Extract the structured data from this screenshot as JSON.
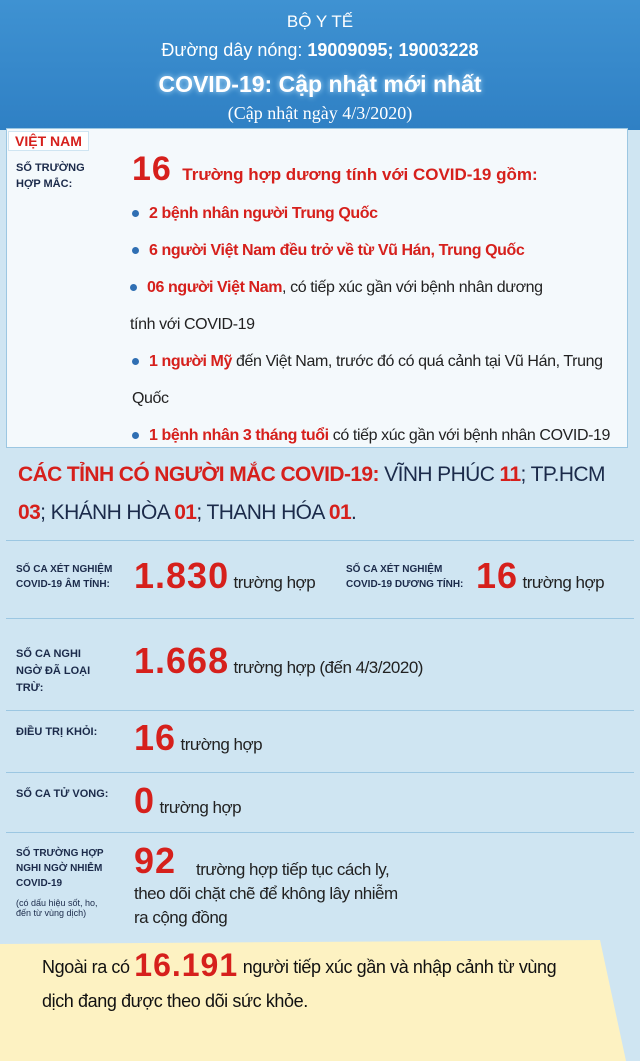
{
  "header": {
    "org": "BỘ Y TẾ",
    "hotline_label": "Đường dây nóng:",
    "hotline": "19009095; 19003228",
    "title": "COVID-19: Cập nhật mới nhất",
    "date": "(Cập nhật ngày 4/3/2020)"
  },
  "vietnam": {
    "tag": "VIỆT NAM",
    "label": "SỐ TRƯỜNG HỢP MẮC:",
    "count": "16",
    "count_text": "Trường hợp dương tính với COVID-19 gồm:",
    "items": [
      {
        "bold": "2 bệnh nhân người Trung Quốc"
      },
      {
        "bold": "6 người Việt Nam đều trở về từ Vũ Hán, Trung Quốc"
      },
      {
        "bold": "06 người Việt Nam",
        "rest": ", có tiếp xúc gần với bệnh nhân dương tính với COVID-19"
      },
      {
        "bold": "1 người Mỹ",
        "rest": " đến Việt Nam, trước đó có quá cảnh tại Vũ Hán, Trung Quốc"
      },
      {
        "bold": "1 bệnh nhân 3 tháng tuổi",
        "rest": " có tiếp xúc gần với bệnh nhân COVID-19"
      }
    ]
  },
  "provinces": {
    "label": "CÁC TỈNH CÓ NGƯỜI MẮC COVID-19:",
    "list": [
      {
        "name": "VĨNH PHÚC",
        "count": "11",
        "sep": ";"
      },
      {
        "name": "TP.HCM",
        "count": "03",
        "sep": ";"
      },
      {
        "name": "KHÁNH HÒA",
        "count": "01",
        "sep": ";"
      },
      {
        "name": "THANH HÓA",
        "count": "01",
        "sep": "."
      }
    ]
  },
  "tests": {
    "negative": {
      "label": "SỐ CA XÉT NGHIỆM COVID-19 ÂM TÍNH:",
      "value": "1.830",
      "unit": "trường hợp"
    },
    "positive": {
      "label": "SỐ CA XÉT NGHIỆM COVID-19 DƯƠNG TÍNH:",
      "value": "16",
      "unit": "trường hợp"
    }
  },
  "excluded": {
    "label": "SỐ CA NGHI NGỜ ĐÃ LOẠI TRỪ:",
    "value": "1.668",
    "unit": "trường hợp (đến 4/3/2020)"
  },
  "recovered": {
    "label": "ĐIỀU TRỊ KHỎI:",
    "value": "16",
    "unit": "trường hợp"
  },
  "deaths": {
    "label": "SỐ CA TỬ VONG:",
    "value": "0",
    "unit": "trường hợp"
  },
  "suspected": {
    "label": "SỐ TRƯỜNG HỢP NGHI NGỜ NHIỄM COVID-19",
    "note": "(có dấu hiệu sốt, ho, đến từ vùng dịch)",
    "value": "92",
    "unit": "trường hợp tiếp tục cách ly, theo dõi chặt chẽ để không lây nhiễm ra cộng đồng"
  },
  "footer": {
    "prefix": "Ngoài ra có",
    "value": "16.191",
    "suffix": "người tiếp xúc gần và nhập cảnh từ vùng dịch đang được theo dõi sức khỏe."
  }
}
